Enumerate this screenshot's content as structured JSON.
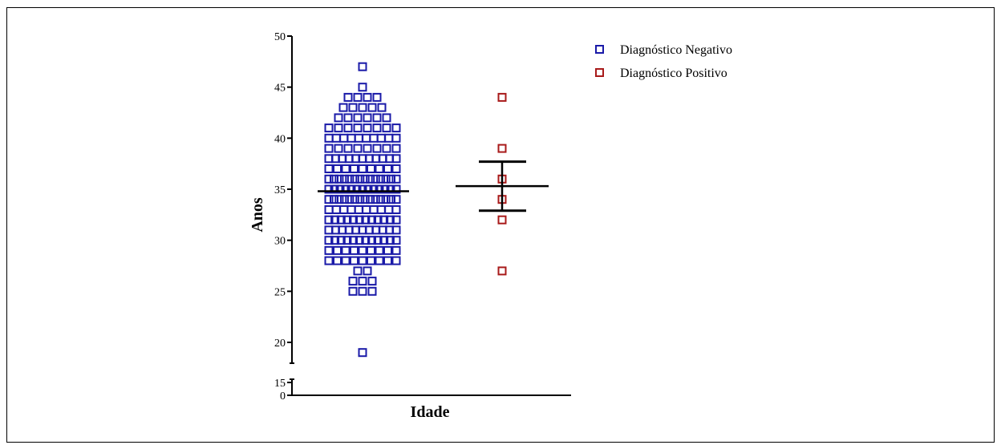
{
  "chart_data": {
    "type": "scatter",
    "title": "",
    "xlabel": "Idade",
    "ylabel": "Anos",
    "ylim": [
      0,
      50
    ],
    "axis_break": [
      15,
      18
    ],
    "y_ticks": [
      0,
      15,
      20,
      25,
      30,
      35,
      40,
      45,
      50
    ],
    "legend_position": "top-right",
    "series": [
      {
        "name": "Diagnóstico Negativo",
        "color": "#1a1aa8",
        "marker": "open-square",
        "mean": 34.8,
        "values": [
          47,
          45,
          44,
          44,
          44,
          44,
          43,
          43,
          43,
          43,
          43,
          42,
          42,
          42,
          42,
          42,
          42,
          41,
          41,
          41,
          41,
          41,
          41,
          41,
          41,
          40,
          40,
          40,
          40,
          40,
          40,
          40,
          40,
          40,
          40,
          39,
          39,
          39,
          39,
          39,
          39,
          39,
          39,
          38,
          38,
          38,
          38,
          38,
          38,
          38,
          38,
          38,
          38,
          38,
          37,
          37,
          37,
          37,
          37,
          37,
          37,
          37,
          37,
          36,
          36,
          36,
          36,
          36,
          36,
          36,
          36,
          36,
          36,
          36,
          36,
          36,
          36,
          35,
          35,
          35,
          35,
          35,
          35,
          35,
          35,
          35,
          35,
          35,
          35,
          35,
          34,
          34,
          34,
          34,
          34,
          34,
          34,
          34,
          34,
          34,
          34,
          34,
          34,
          34,
          33,
          33,
          33,
          33,
          33,
          33,
          33,
          33,
          33,
          33,
          32,
          32,
          32,
          32,
          32,
          32,
          32,
          32,
          32,
          32,
          32,
          32,
          31,
          31,
          31,
          31,
          31,
          31,
          31,
          31,
          31,
          31,
          31,
          30,
          30,
          30,
          30,
          30,
          30,
          30,
          30,
          30,
          30,
          30,
          30,
          29,
          29,
          29,
          29,
          29,
          29,
          29,
          29,
          29,
          28,
          28,
          28,
          28,
          28,
          28,
          28,
          28,
          28,
          27,
          27,
          26,
          26,
          26,
          25,
          25,
          25,
          19
        ]
      },
      {
        "name": "Diagnóstico Positivo",
        "color": "#a81a1a",
        "marker": "open-square",
        "mean": 35.3,
        "sem_upper": 37.7,
        "sem_lower": 32.9,
        "values": [
          44,
          39,
          36,
          34,
          32,
          27
        ]
      }
    ]
  }
}
